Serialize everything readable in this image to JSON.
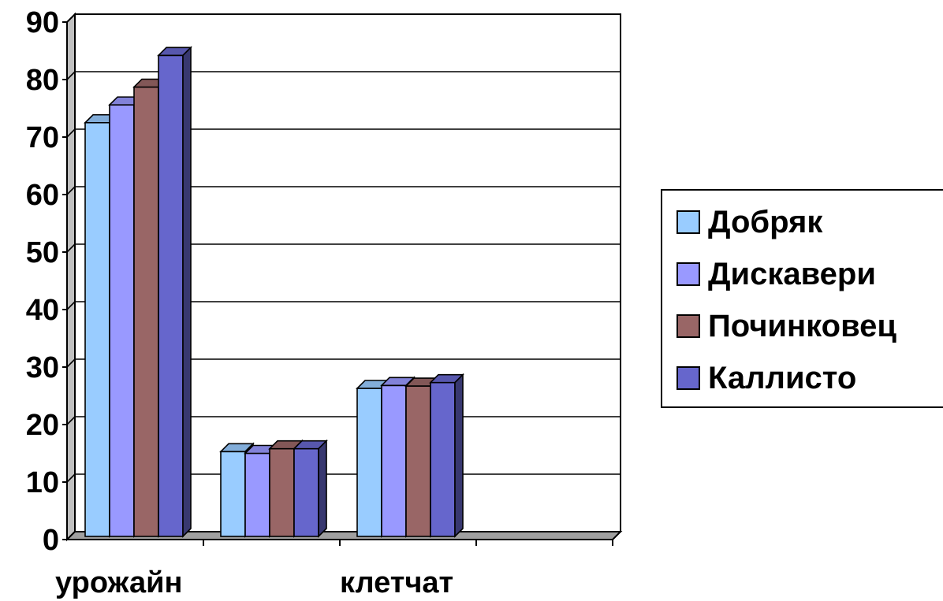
{
  "chart_data": {
    "type": "bar",
    "categories": [
      "урожайн",
      "",
      "клетчат",
      ""
    ],
    "series": [
      {
        "name": "Добряк",
        "values": [
          72.5,
          15.3,
          26.3,
          null
        ]
      },
      {
        "name": "Дискавери",
        "values": [
          75.6,
          15.0,
          26.8,
          null
        ]
      },
      {
        "name": "Починковец",
        "values": [
          78.7,
          15.8,
          26.7,
          null
        ]
      },
      {
        "name": "Каллисто",
        "values": [
          84.2,
          15.8,
          27.3,
          null
        ]
      }
    ],
    "ylim": [
      0,
      90
    ],
    "yticks": [
      0,
      10,
      20,
      30,
      40,
      50,
      60,
      70,
      80,
      90
    ],
    "title": "",
    "xlabel": "",
    "ylabel": "",
    "grid": true,
    "legend_position": "right",
    "colors": [
      "#99ccff",
      "#9999ff",
      "#996666",
      "#6666cc"
    ]
  }
}
